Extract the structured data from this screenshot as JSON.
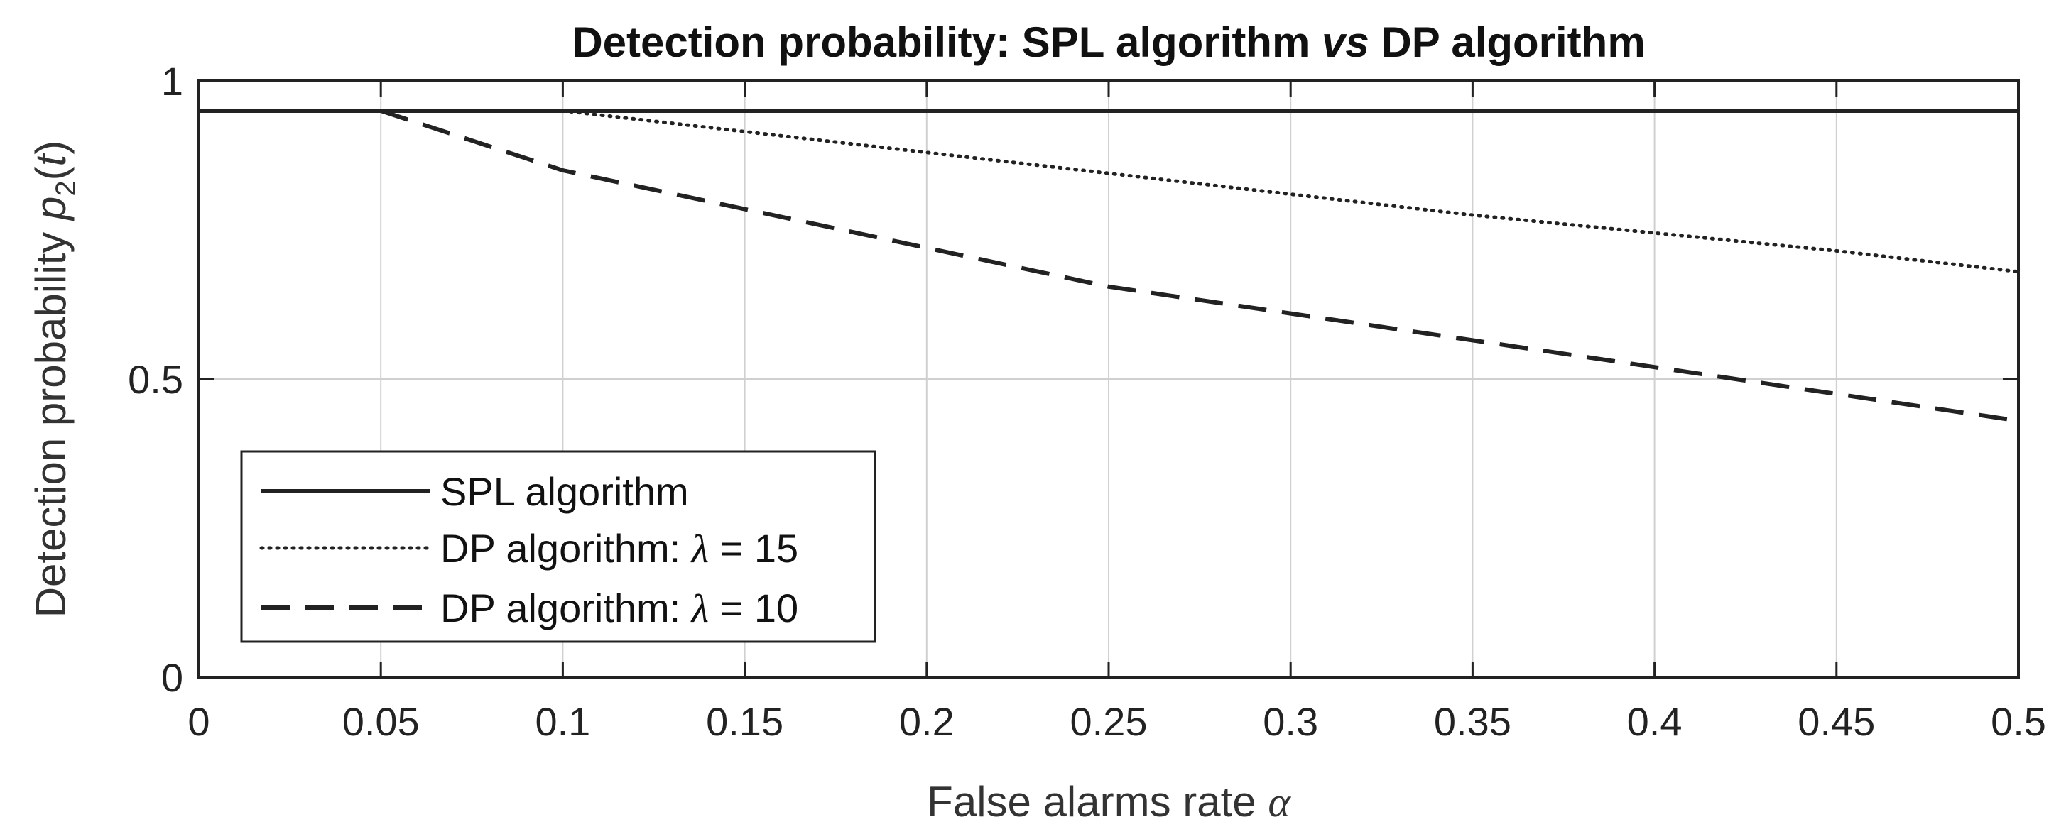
{
  "chart_data": {
    "type": "line",
    "title": "Detection probability: SPL algorithm vs DP algorithm",
    "title_parts": [
      "Detection probability: SPL algorithm ",
      "vs",
      " DP algorithm"
    ],
    "xlabel": "False alarms rate α",
    "xlabel_parts": [
      "False alarms rate ",
      "α"
    ],
    "ylabel": "Detection probability p2(t)",
    "ylabel_parts": [
      "Detection probability ",
      "p",
      "2",
      "(",
      "t",
      ")"
    ],
    "xlim": [
      0,
      0.5
    ],
    "ylim": [
      0,
      1
    ],
    "x_ticks": [
      0,
      0.05,
      0.1,
      0.15,
      0.2,
      0.25,
      0.3,
      0.35,
      0.4,
      0.45,
      0.5
    ],
    "x_tick_labels": [
      "0",
      "0.05",
      "0.1",
      "0.15",
      "0.2",
      "0.25",
      "0.3",
      "0.35",
      "0.4",
      "0.45",
      "0.5"
    ],
    "y_ticks": [
      0,
      0.5,
      1
    ],
    "y_tick_labels": [
      "0",
      "0.5",
      "1"
    ],
    "grid": true,
    "legend_position": "bottom-left",
    "series": [
      {
        "name": "SPL algorithm",
        "legend_parts": [
          "SPL algorithm"
        ],
        "style": "solid",
        "x": [
          0,
          0.5
        ],
        "y": [
          0.95,
          0.95
        ]
      },
      {
        "name": "DP algorithm: λ = 15",
        "legend_parts": [
          "DP algorithm: ",
          "λ",
          " = 15"
        ],
        "style": "dotted",
        "x": [
          0.1,
          0.15,
          0.2,
          0.25,
          0.3,
          0.35,
          0.4,
          0.45,
          0.5
        ],
        "y": [
          0.95,
          0.915,
          0.88,
          0.845,
          0.81,
          0.775,
          0.745,
          0.715,
          0.68
        ]
      },
      {
        "name": "DP algorithm: λ = 10",
        "legend_parts": [
          "DP algorithm: ",
          "λ",
          " = 10"
        ],
        "style": "dashed",
        "x": [
          0.05,
          0.1,
          0.15,
          0.2,
          0.25,
          0.3,
          0.35,
          0.4,
          0.45,
          0.5
        ],
        "y": [
          0.95,
          0.85,
          0.785,
          0.72,
          0.655,
          0.61,
          0.565,
          0.52,
          0.475,
          0.43
        ]
      }
    ]
  }
}
